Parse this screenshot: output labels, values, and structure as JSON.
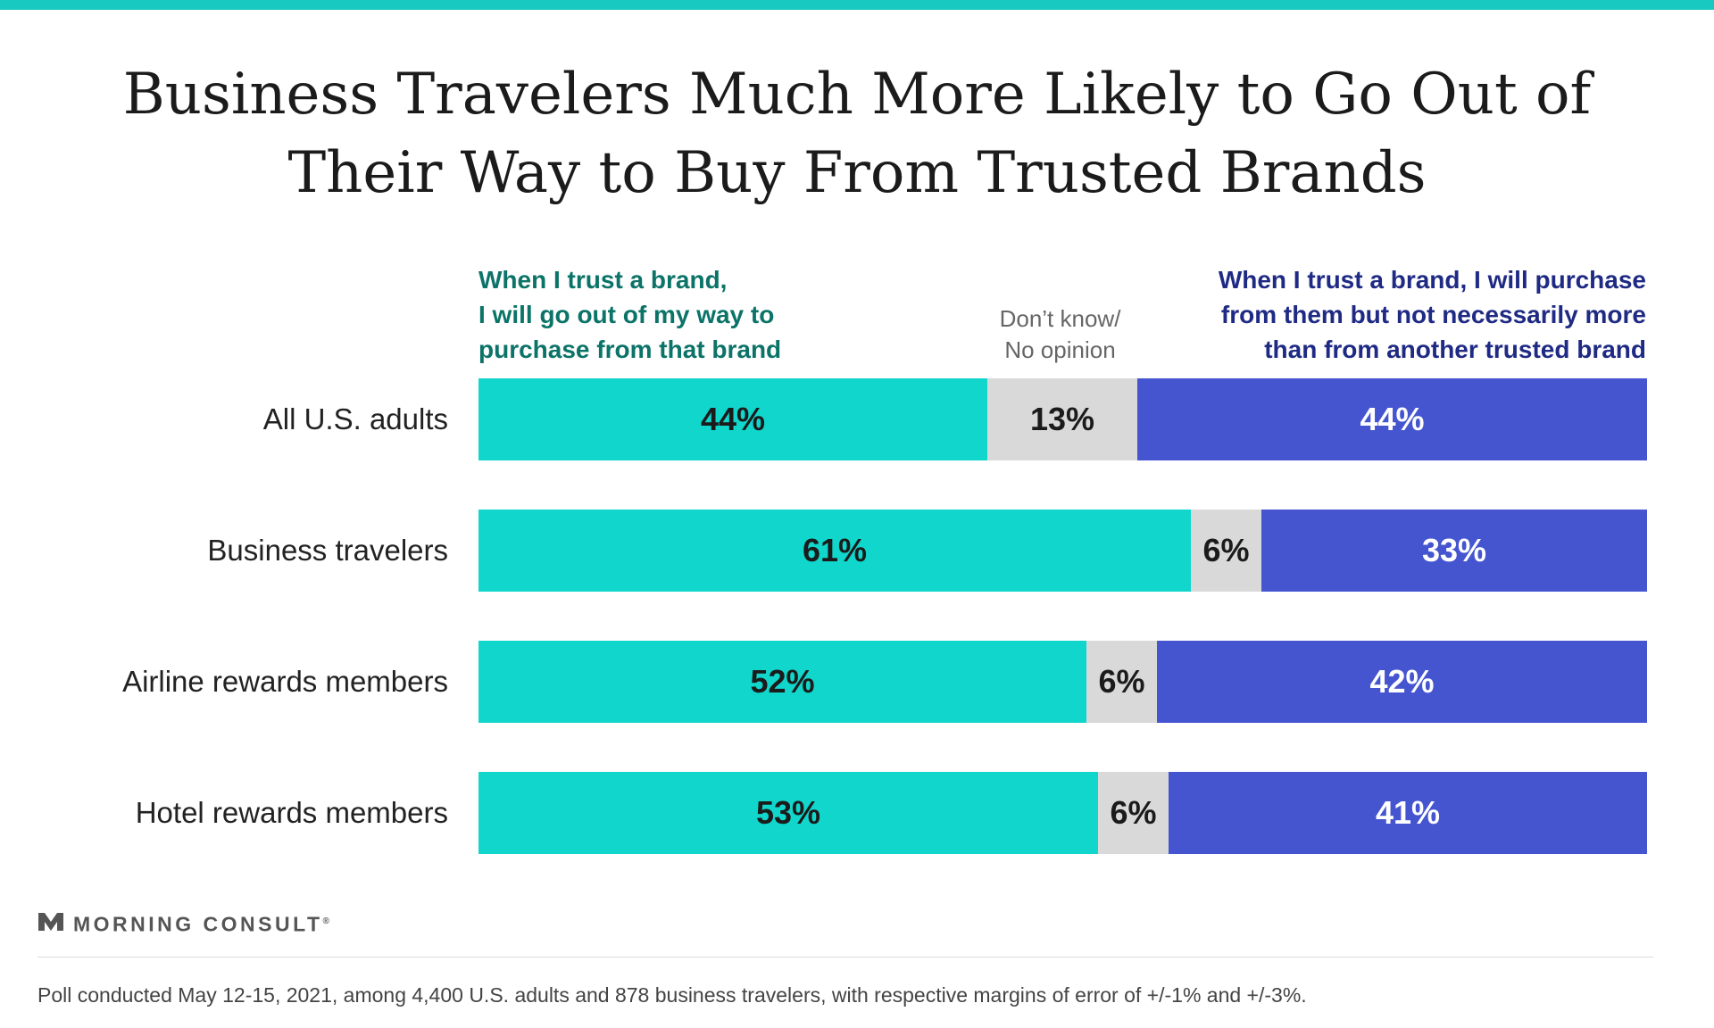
{
  "title_line1": "Business Travelers Much More Likely to Go Out of",
  "title_line2": "Their Way to Buy From Trusted Brands",
  "legend": {
    "left": [
      "When I trust a brand,",
      "I will go out of my way to",
      "purchase from that brand"
    ],
    "middle": [
      "Don’t know/",
      "No opinion"
    ],
    "right": [
      "When I trust a brand, I will purchase",
      "from them but not necessarily more",
      "than from another trusted brand"
    ]
  },
  "colors": {
    "go_out_of_way": "#11d6cc",
    "dont_know": "#d9d9d9",
    "not_necessarily_more": "#4555d0",
    "accent_bar": "#17c9c0"
  },
  "logo": {
    "name": "MORNING CONSULT",
    "mark": "®"
  },
  "footnote": "Poll conducted May 12-15, 2021, among 4,400 U.S. adults and 878 business travelers, with respective margins of error of +/-1% and +/-3%.",
  "chart_data": {
    "type": "bar",
    "orientation": "horizontal",
    "stacked": true,
    "categories": [
      "All U.S. adults",
      "Business travelers",
      "Airline rewards members",
      "Hotel rewards members"
    ],
    "series": [
      {
        "values": [
          44,
          61,
          52,
          53
        ],
        "labels": [
          "44%",
          "61%",
          "52%",
          "53%"
        ]
      },
      {
        "values": [
          13,
          6,
          6,
          6
        ],
        "labels": [
          "13%",
          "6%",
          "6%",
          "6%"
        ]
      },
      {
        "values": [
          44,
          33,
          42,
          41
        ],
        "labels": [
          "44%",
          "33%",
          "42%",
          "41%"
        ]
      }
    ],
    "xlim": [
      0,
      100
    ],
    "grid": false,
    "legend_placement": "top"
  }
}
